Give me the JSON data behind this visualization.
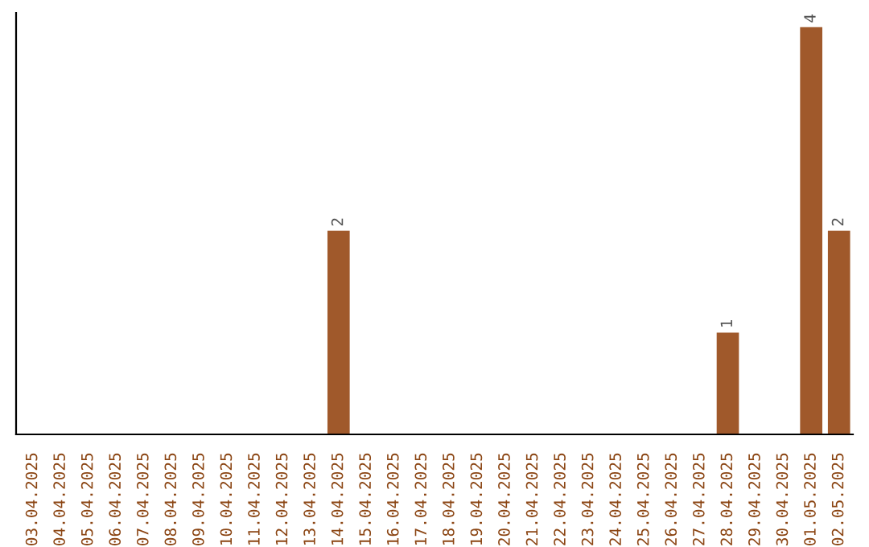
{
  "chart_data": {
    "type": "bar",
    "categories": [
      "03.04.2025",
      "04.04.2025",
      "05.04.2025",
      "06.04.2025",
      "07.04.2025",
      "08.04.2025",
      "09.04.2025",
      "10.04.2025",
      "11.04.2025",
      "12.04.2025",
      "13.04.2025",
      "14.04.2025",
      "15.04.2025",
      "16.04.2025",
      "17.04.2025",
      "18.04.2025",
      "19.04.2025",
      "20.04.2025",
      "21.04.2025",
      "22.04.2025",
      "23.04.2025",
      "24.04.2025",
      "25.04.2025",
      "26.04.2025",
      "27.04.2025",
      "28.04.2025",
      "29.04.2025",
      "30.04.2025",
      "01.05.2025",
      "02.05.2025"
    ],
    "values": [
      0,
      0,
      0,
      0,
      0,
      0,
      0,
      0,
      0,
      0,
      0,
      2,
      0,
      0,
      0,
      0,
      0,
      0,
      0,
      0,
      0,
      0,
      0,
      0,
      0,
      1,
      0,
      0,
      4,
      2
    ],
    "value_labels": [
      null,
      null,
      null,
      null,
      null,
      null,
      null,
      null,
      null,
      null,
      null,
      "2",
      null,
      null,
      null,
      null,
      null,
      null,
      null,
      null,
      null,
      null,
      null,
      null,
      null,
      "1",
      null,
      null,
      "4",
      "2"
    ],
    "color": "#a0592b",
    "grid": false,
    "legend": false
  }
}
